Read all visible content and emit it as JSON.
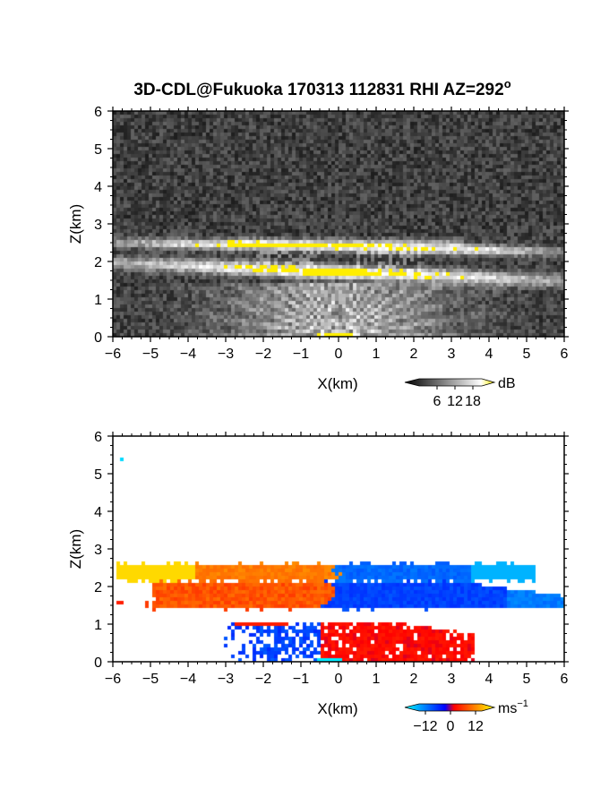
{
  "title": {
    "text": "3D-CDL@Fukuoka 170313 112831 RHI AZ=292",
    "degree": "o"
  },
  "colors": {
    "background": "#ffffff",
    "axis": "#000000",
    "highlight_yellow": "#ffee00"
  },
  "chart_data": [
    {
      "type": "heatmap",
      "panel": "top",
      "variable": "signal intensity",
      "xlabel": "X(km)",
      "ylabel": "Z(km)",
      "xlim": [
        -6,
        6
      ],
      "ylim": [
        0,
        6
      ],
      "xticks": [
        "−6",
        "−5",
        "−4",
        "−3",
        "−2",
        "−1",
        "0",
        "1",
        "2",
        "3",
        "4",
        "5",
        "6"
      ],
      "yticks": [
        "0",
        "1",
        "2",
        "3",
        "4",
        "5",
        "6"
      ],
      "colorbar": {
        "unit": "dB",
        "ticks": [
          "6",
          "12",
          "18"
        ],
        "tick_values": [
          6,
          12,
          18
        ],
        "range": [
          0,
          21
        ],
        "colors": [
          "#000000",
          "#ffffff",
          "#ffee00"
        ]
      },
      "features": [
        {
          "name": "upper layer",
          "x_range": [
            -6,
            6
          ],
          "z_center": 2.35,
          "z_range": [
            2.2,
            2.6
          ],
          "max_db": 20
        },
        {
          "name": "lower layer",
          "x_range": [
            -5.5,
            6
          ],
          "z_center": 1.7,
          "z_range": [
            1.4,
            2.0
          ],
          "max_db": 19
        },
        {
          "name": "near-field fan",
          "x_range": [
            -3,
            3
          ],
          "z_range": [
            0,
            1.4
          ],
          "max_db": 13
        }
      ]
    },
    {
      "type": "heatmap",
      "panel": "bottom",
      "variable": "radial velocity",
      "xlabel": "X(km)",
      "ylabel": "Z(km)",
      "xlim": [
        -6,
        6
      ],
      "ylim": [
        0,
        6
      ],
      "xticks": [
        "−6",
        "−5",
        "−4",
        "−3",
        "−2",
        "−1",
        "0",
        "1",
        "2",
        "3",
        "4",
        "5",
        "6"
      ],
      "yticks": [
        "0",
        "1",
        "2",
        "3",
        "4",
        "5",
        "6"
      ],
      "colorbar": {
        "unit": "ms",
        "unit_exponent": "−1",
        "ticks": [
          "−12",
          "0",
          "12"
        ],
        "tick_values": [
          -12,
          0,
          12
        ],
        "range": [
          -15,
          15
        ],
        "colors": [
          "#00ffff",
          "#0000ff",
          "#ff0000",
          "#ffff00"
        ]
      },
      "features": [
        {
          "name": "upper layer west",
          "x_range": [
            -5.8,
            0
          ],
          "z_range": [
            2.2,
            2.6
          ],
          "velocity": 8
        },
        {
          "name": "upper layer east",
          "x_range": [
            0,
            5.2
          ],
          "z_range": [
            2.1,
            2.6
          ],
          "velocity": -7
        },
        {
          "name": "lower layer west",
          "x_range": [
            -5.0,
            -0.3
          ],
          "z_range": [
            1.5,
            2.1
          ],
          "velocity": 5
        },
        {
          "name": "lower layer east",
          "x_range": [
            -0.6,
            6
          ],
          "z_range": [
            1.35,
            2.05
          ],
          "velocity": -5
        },
        {
          "name": "low-level west",
          "x_range": [
            -3,
            0
          ],
          "z_range": [
            0,
            1.05
          ],
          "velocity": -5
        },
        {
          "name": "low-level east",
          "x_range": [
            -0.5,
            3.6
          ],
          "z_range": [
            0,
            1.05
          ],
          "velocity": 2
        }
      ]
    }
  ]
}
